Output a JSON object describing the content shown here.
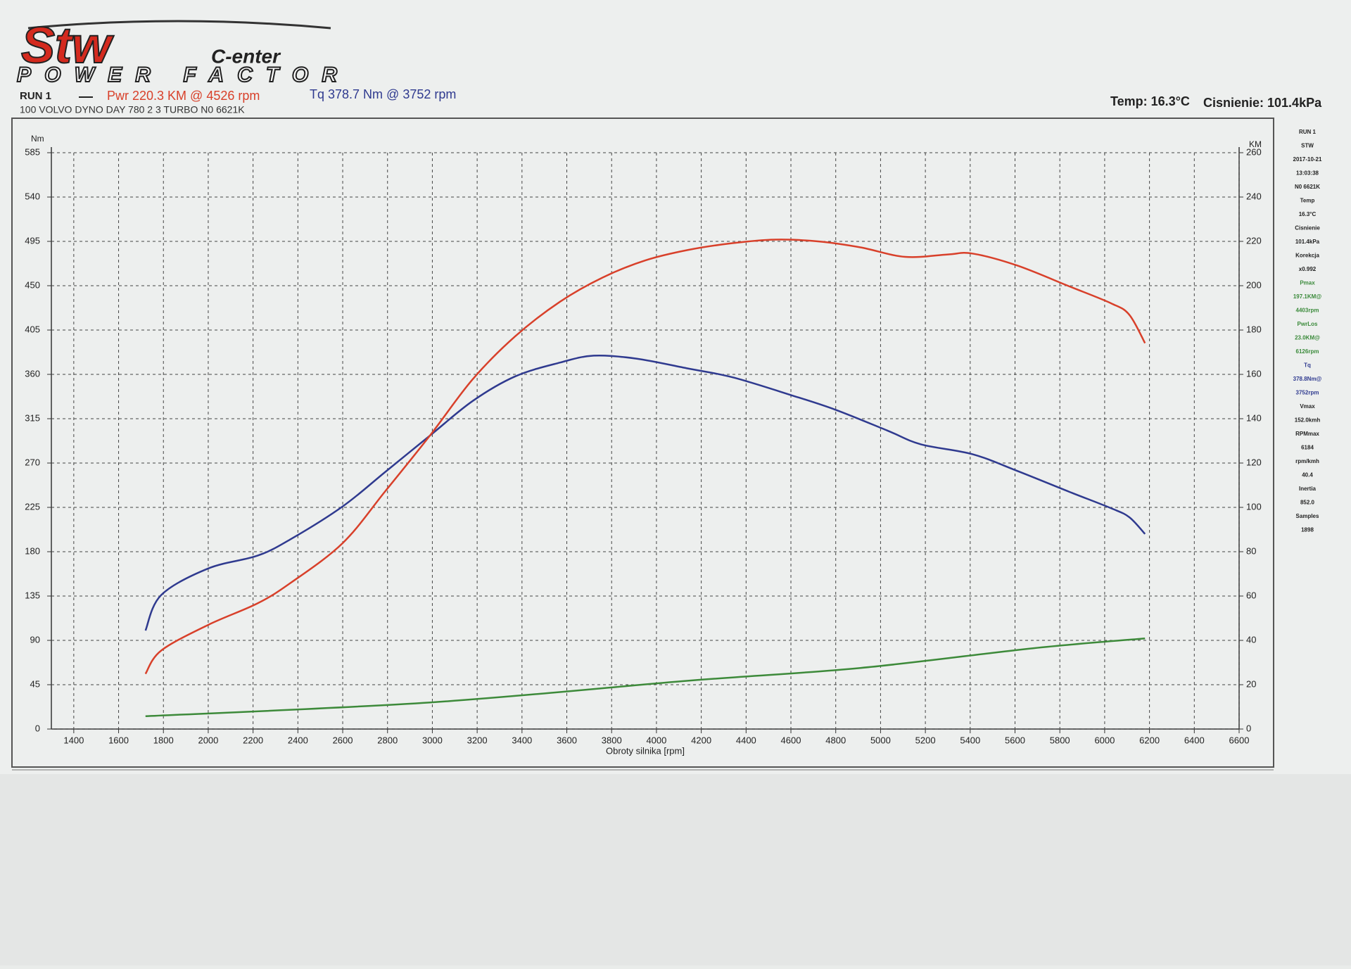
{
  "logo": {
    "brand": "Stw",
    "sub": "C-enter",
    "tag": "POWER FACTOR"
  },
  "header": {
    "run": "RUN 1",
    "power": "Pwr  220.3 KM @ 4526 rpm",
    "torque": "Tq 378.7 Nm @ 3752 rpm",
    "vehicle": "100 VOLVO DYNO DAY 780 2 3 TURBO N0 6621K",
    "temp": "Temp: 16.3°C",
    "pressure": "Cisnienie: 101.4kPa"
  },
  "side_panel": [
    {
      "text": "RUN 1"
    },
    {
      "text": "STW"
    },
    {
      "text": "2017-10-21"
    },
    {
      "text": "13:03:38"
    },
    {
      "text": "N0 6621K"
    },
    {
      "text": "Temp"
    },
    {
      "text": "16.3°C"
    },
    {
      "text": "Cisnienie"
    },
    {
      "text": "101.4kPa"
    },
    {
      "text": "Korekcja"
    },
    {
      "text": "x0.992"
    },
    {
      "text": "Pmax",
      "color": "#3a8a3a"
    },
    {
      "text": "197.1KM@",
      "color": "#3a8a3a"
    },
    {
      "text": "4403rpm",
      "color": "#3a8a3a"
    },
    {
      "text": "PwrLos",
      "color": "#3a8a3a"
    },
    {
      "text": "23.0KM@",
      "color": "#3a8a3a"
    },
    {
      "text": "6126rpm",
      "color": "#3a8a3a"
    },
    {
      "text": "Tq",
      "color": "#2f3a8f"
    },
    {
      "text": "378.8Nm@",
      "color": "#2f3a8f"
    },
    {
      "text": "3752rpm",
      "color": "#2f3a8f"
    },
    {
      "text": "Vmax"
    },
    {
      "text": "152.0kmh"
    },
    {
      "text": "RPMmax"
    },
    {
      "text": "6184"
    },
    {
      "text": "rpm/kmh"
    },
    {
      "text": "40.4"
    },
    {
      "text": "Inertia"
    },
    {
      "text": "852.0"
    },
    {
      "text": "Samples"
    },
    {
      "text": "1898"
    }
  ],
  "chart_data": {
    "type": "line",
    "y_label": "Nm",
    "y2_label": "KM",
    "x_label": "Obroty silnika [rpm]",
    "xlim": [
      1300,
      6600
    ],
    "xticks": [
      1400,
      1600,
      1800,
      2000,
      2200,
      2400,
      2600,
      2800,
      3000,
      3200,
      3400,
      3600,
      3800,
      4000,
      4200,
      4400,
      4600,
      4800,
      5000,
      5200,
      5400,
      5600,
      5800,
      6000,
      6200,
      6400,
      6600
    ],
    "ylim": [
      0,
      585
    ],
    "yticks": [
      0,
      45,
      90,
      135,
      180,
      225,
      270,
      315,
      360,
      405,
      450,
      495,
      540,
      585
    ],
    "y2lim": [
      0,
      260
    ],
    "y2ticks": [
      0,
      20,
      40,
      60,
      80,
      100,
      120,
      140,
      160,
      180,
      200,
      220,
      240,
      260
    ],
    "grid": true,
    "series": [
      {
        "color": "#2f3a8f",
        "axis": "y",
        "x": [
          1720,
          1790,
          2000,
          2220,
          2370,
          2600,
          2790,
          2990,
          3180,
          3370,
          3570,
          3720,
          3910,
          4140,
          4340,
          4600,
          4800,
          5030,
          5180,
          5410,
          5610,
          5840,
          6030,
          6110,
          6180
        ],
        "values": [
          100,
          136,
          163,
          176,
          193,
          226,
          261,
          298,
          333,
          358,
          372,
          379,
          376,
          366,
          357,
          339,
          324,
          303,
          289,
          279,
          262,
          241,
          224,
          215,
          198
        ]
      },
      {
        "color": "#d8402a",
        "axis": "y2",
        "x": [
          1720,
          1790,
          2000,
          2220,
          2370,
          2600,
          2790,
          2990,
          3180,
          3370,
          3570,
          3760,
          3950,
          4140,
          4340,
          4530,
          4720,
          4910,
          5110,
          5300,
          5410,
          5610,
          5840,
          6030,
          6110,
          6180
        ],
        "values": [
          24.9,
          35.4,
          47.0,
          56.7,
          66.1,
          83.9,
          107.3,
          132.5,
          157.8,
          177.2,
          192.8,
          203.7,
          211.4,
          216.1,
          219.2,
          220.8,
          220.0,
          217.3,
          213.0,
          214.1,
          214.5,
          209.1,
          199.8,
          192.0,
          186.9,
          174.1
        ]
      },
      {
        "color": "#3d8a3a",
        "axis": "y",
        "x": [
          1720,
          2990,
          4140,
          4910,
          5680,
          6180
        ],
        "values": [
          13,
          27,
          49,
          62,
          82,
          92
        ]
      }
    ]
  }
}
